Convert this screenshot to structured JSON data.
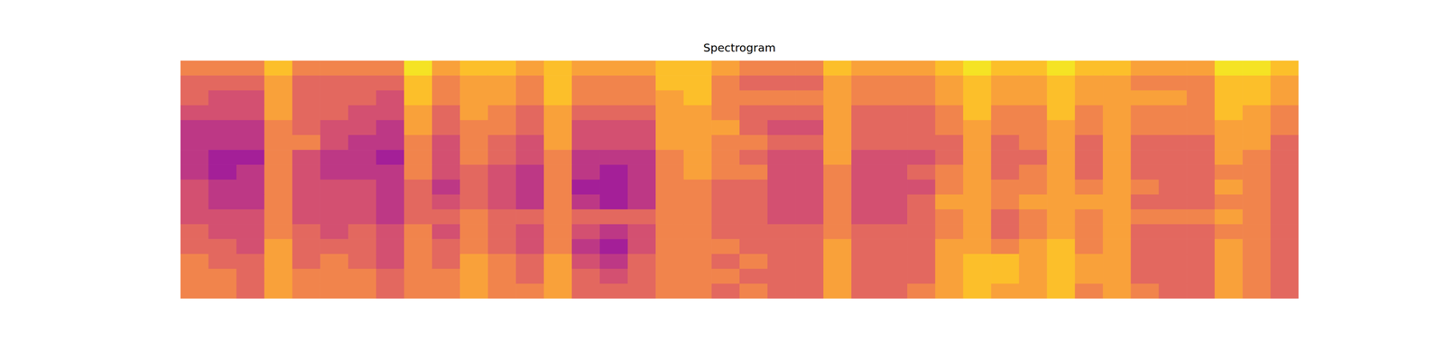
{
  "chart_data": {
    "type": "heatmap",
    "title": "Spectrogram",
    "tick_labels": false,
    "color_range": [
      0,
      9
    ],
    "cells": [
      [
        6,
        6,
        6,
        8,
        6,
        6,
        6,
        6,
        9,
        7,
        8,
        8,
        7,
        8,
        7,
        7,
        7,
        8,
        8,
        7,
        6,
        6,
        6,
        8,
        7,
        7,
        7,
        8,
        9,
        8,
        8,
        9,
        8,
        8,
        7,
        7,
        7,
        9,
        9,
        8
      ],
      [
        5,
        5,
        5,
        7,
        5,
        5,
        5,
        5,
        8,
        6,
        7,
        7,
        6,
        8,
        6,
        6,
        6,
        8,
        8,
        6,
        5,
        5,
        5,
        7,
        6,
        6,
        6,
        7,
        8,
        7,
        7,
        8,
        7,
        7,
        6,
        6,
        6,
        8,
        8,
        7
      ],
      [
        5,
        4,
        4,
        7,
        5,
        5,
        5,
        4,
        8,
        6,
        7,
        7,
        6,
        8,
        6,
        6,
        6,
        7,
        8,
        6,
        6,
        6,
        6,
        7,
        6,
        6,
        6,
        7,
        8,
        7,
        7,
        8,
        7,
        7,
        7,
        7,
        6,
        8,
        8,
        7
      ],
      [
        4,
        4,
        4,
        7,
        5,
        5,
        4,
        4,
        7,
        5,
        7,
        6,
        5,
        7,
        5,
        5,
        5,
        7,
        7,
        6,
        5,
        5,
        5,
        7,
        5,
        5,
        5,
        6,
        8,
        6,
        6,
        8,
        6,
        7,
        6,
        6,
        6,
        8,
        7,
        6
      ],
      [
        3,
        3,
        3,
        6,
        5,
        4,
        4,
        3,
        7,
        5,
        6,
        6,
        5,
        7,
        4,
        4,
        4,
        7,
        7,
        7,
        5,
        4,
        4,
        7,
        5,
        5,
        5,
        6,
        7,
        6,
        6,
        7,
        6,
        7,
        6,
        6,
        6,
        7,
        7,
        6
      ],
      [
        3,
        3,
        3,
        6,
        6,
        4,
        3,
        3,
        6,
        4,
        6,
        5,
        4,
        7,
        4,
        4,
        4,
        7,
        7,
        6,
        6,
        5,
        5,
        7,
        5,
        5,
        5,
        5,
        7,
        5,
        6,
        7,
        5,
        7,
        5,
        5,
        5,
        7,
        7,
        5
      ],
      [
        3,
        2,
        2,
        6,
        4,
        3,
        3,
        2,
        6,
        4,
        6,
        5,
        4,
        6,
        3,
        3,
        3,
        6,
        7,
        6,
        5,
        4,
        4,
        7,
        4,
        4,
        4,
        5,
        7,
        5,
        5,
        7,
        5,
        7,
        5,
        5,
        5,
        7,
        6,
        5
      ],
      [
        3,
        2,
        3,
        6,
        4,
        3,
        3,
        3,
        6,
        4,
        5,
        4,
        3,
        6,
        3,
        2,
        3,
        6,
        7,
        6,
        6,
        4,
        4,
        6,
        4,
        4,
        5,
        6,
        7,
        5,
        6,
        7,
        5,
        7,
        5,
        5,
        5,
        6,
        6,
        5
      ],
      [
        4,
        3,
        3,
        6,
        4,
        4,
        4,
        3,
        5,
        3,
        5,
        4,
        3,
        6,
        2,
        2,
        3,
        6,
        6,
        5,
        5,
        4,
        4,
        6,
        4,
        4,
        4,
        6,
        7,
        6,
        6,
        7,
        6,
        7,
        6,
        5,
        5,
        7,
        6,
        5
      ],
      [
        4,
        3,
        3,
        6,
        4,
        4,
        4,
        3,
        5,
        4,
        5,
        4,
        3,
        6,
        3,
        2,
        3,
        6,
        6,
        5,
        5,
        4,
        4,
        6,
        4,
        4,
        5,
        7,
        7,
        6,
        7,
        7,
        7,
        7,
        5,
        5,
        5,
        6,
        6,
        5
      ],
      [
        4,
        4,
        4,
        6,
        4,
        4,
        4,
        3,
        5,
        5,
        6,
        5,
        5,
        6,
        5,
        5,
        5,
        6,
        6,
        5,
        5,
        4,
        4,
        6,
        4,
        4,
        5,
        6,
        7,
        5,
        6,
        7,
        6,
        7,
        6,
        6,
        6,
        7,
        6,
        5
      ],
      [
        5,
        4,
        4,
        6,
        5,
        4,
        5,
        4,
        6,
        4,
        6,
        5,
        4,
        6,
        4,
        3,
        4,
        6,
        6,
        5,
        5,
        5,
        5,
        6,
        5,
        5,
        5,
        6,
        7,
        5,
        6,
        7,
        6,
        7,
        5,
        5,
        5,
        6,
        6,
        5
      ],
      [
        5,
        5,
        4,
        7,
        5,
        5,
        5,
        4,
        6,
        5,
        6,
        5,
        4,
        6,
        3,
        2,
        4,
        6,
        6,
        6,
        5,
        5,
        5,
        7,
        5,
        5,
        5,
        7,
        7,
        6,
        7,
        8,
        6,
        7,
        5,
        5,
        5,
        7,
        6,
        5
      ],
      [
        6,
        5,
        5,
        7,
        5,
        6,
        5,
        4,
        6,
        5,
        7,
        6,
        5,
        7,
        4,
        3,
        5,
        6,
        6,
        5,
        6,
        5,
        5,
        7,
        5,
        5,
        5,
        7,
        8,
        8,
        7,
        8,
        7,
        7,
        5,
        5,
        5,
        7,
        6,
        5
      ],
      [
        6,
        6,
        5,
        7,
        6,
        6,
        6,
        5,
        6,
        6,
        7,
        6,
        5,
        7,
        5,
        4,
        5,
        6,
        6,
        6,
        5,
        5,
        5,
        7,
        5,
        5,
        5,
        7,
        8,
        8,
        7,
        8,
        7,
        7,
        5,
        5,
        5,
        7,
        6,
        5
      ],
      [
        6,
        6,
        5,
        7,
        6,
        6,
        6,
        5,
        6,
        6,
        7,
        6,
        6,
        7,
        5,
        5,
        5,
        6,
        6,
        5,
        6,
        5,
        5,
        7,
        5,
        5,
        6,
        7,
        8,
        7,
        7,
        8,
        6,
        7,
        6,
        5,
        5,
        7,
        6,
        5
      ]
    ]
  }
}
